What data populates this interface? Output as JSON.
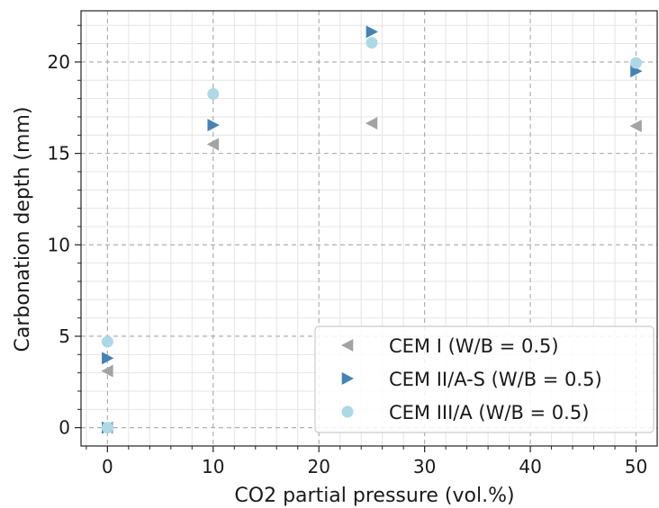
{
  "chart_data": {
    "type": "scatter",
    "title": "",
    "xlabel": "CO2 partial pressure (vol.%)",
    "ylabel": "Carbonation depth (mm)",
    "xlim": [
      -2.5,
      52
    ],
    "ylim": [
      -1,
      22.8
    ],
    "xticks": [
      0,
      10,
      20,
      30,
      40,
      50
    ],
    "yticks": [
      0,
      5,
      10,
      15,
      20
    ],
    "grid": true,
    "legend_position": "lower right",
    "series": [
      {
        "name": "CEM I (W/B = 0.5)",
        "marker": "triangle-left",
        "color": "#a3a3a3",
        "x": [
          0,
          0,
          10,
          25,
          50
        ],
        "y": [
          0,
          3.1,
          15.5,
          16.65,
          16.5
        ]
      },
      {
        "name": "CEM II/A-S (W/B = 0.5)",
        "marker": "triangle-right",
        "color": "#4682b4",
        "x": [
          0,
          0,
          10,
          25,
          50
        ],
        "y": [
          0,
          3.8,
          16.55,
          21.65,
          19.5
        ]
      },
      {
        "name": "CEM III/A (W/B = 0.5)",
        "marker": "circle",
        "color": "#add8e6",
        "x": [
          0,
          0,
          10,
          25,
          50
        ],
        "y": [
          0,
          4.7,
          18.25,
          21.05,
          19.95
        ]
      }
    ]
  }
}
